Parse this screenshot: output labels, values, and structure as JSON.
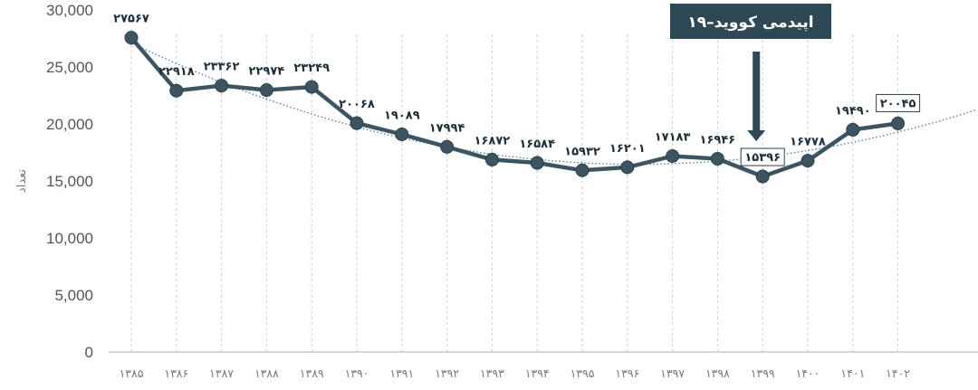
{
  "chart_data": {
    "type": "line",
    "title": "",
    "xlabel": "",
    "ylabel": "تعداد",
    "ylim": [
      0,
      30000
    ],
    "yticks": [
      0,
      5000,
      10000,
      15000,
      20000,
      25000,
      30000
    ],
    "ytick_labels": [
      "0",
      "5,000",
      "10,000",
      "15,000",
      "20,000",
      "25,000",
      "30,000"
    ],
    "categories": [
      "۱۳۸۵",
      "۱۳۸۶",
      "۱۳۸۷",
      "۱۳۸۸",
      "۱۳۸۹",
      "۱۳۹۰",
      "۱۳۹۱",
      "۱۳۹۲",
      "۱۳۹۳",
      "۱۳۹۴",
      "۱۳۹۵",
      "۱۳۹۶",
      "۱۳۹۷",
      "۱۳۹۸",
      "۱۳۹۹",
      "۱۴۰۰",
      "۱۴۰۱",
      "۱۴۰۲"
    ],
    "values": [
      27567,
      22918,
      23362,
      22974,
      23249,
      20068,
      19089,
      17994,
      16872,
      16584,
      15932,
      16201,
      17183,
      16946,
      15396,
      16778,
      19490,
      20045
    ],
    "data_labels": [
      "۲۷۵۶۷",
      "۲۲۹۱۸",
      "۲۳۳۶۲",
      "۲۲۹۷۴",
      "۲۳۲۴۹",
      "۲۰۰۶۸",
      "۱۹۰۸۹",
      "۱۷۹۹۴",
      "۱۶۸۷۲",
      "۱۶۵۸۴",
      "۱۵۹۳۲",
      "۱۶۲۰۱",
      "۱۷۱۸۳",
      "۱۶۹۴۶",
      "۱۵۳۹۶",
      "۱۶۷۷۸",
      "۱۹۴۹۰",
      "۲۰۰۴۵"
    ],
    "boxed_labels": [
      14,
      17
    ],
    "trendline": "polynomial, dotted",
    "grid": "vertical dashed at categories",
    "legend": "none",
    "colors": {
      "line": "#3d5563",
      "marker": "#3d5563",
      "trend": "#4a7d96",
      "annotation_bg": "#2e4955",
      "axis": "#bfbfbf",
      "grid": "#cfcfcf"
    },
    "annotation": {
      "text": "اپیدمی کووید–۱۹",
      "category_index": 14
    }
  }
}
